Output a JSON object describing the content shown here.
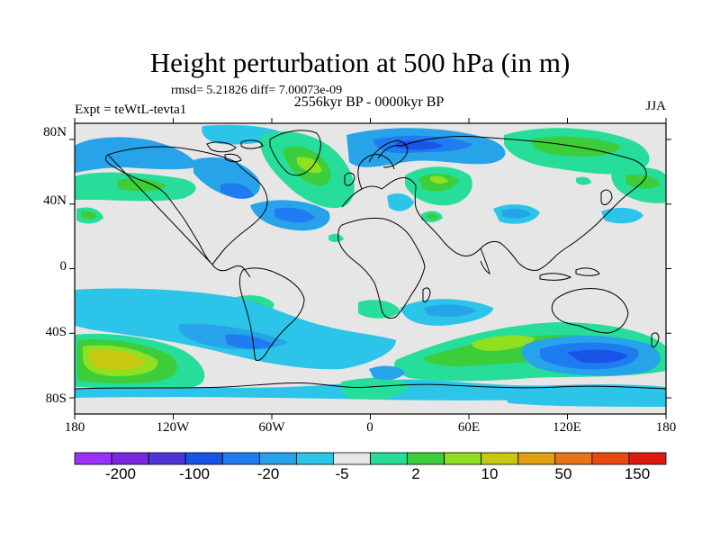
{
  "title": "Height perturbation at 500 hPa (in m)",
  "stats": "rmsd= 5.21826 diff= 7.00073e-09",
  "period": "2556kyr BP - 0000kyr BP",
  "experiment": "Expt = teWtL-tevta1",
  "season": "JJA",
  "axes": {
    "y_ticks": [
      "80N",
      "40N",
      "0",
      "40S",
      "80S"
    ],
    "x_ticks": [
      "180",
      "120W",
      "60W",
      "0",
      "60E",
      "120E",
      "180"
    ]
  },
  "colorbar": {
    "colors": [
      "#9b30ff",
      "#7a28e0",
      "#4d35d8",
      "#1a54e6",
      "#1f7cf0",
      "#27a3ea",
      "#2cc4e8",
      "#e6e6e6",
      "#27dd9a",
      "#3dcc3a",
      "#8ee020",
      "#c8c810",
      "#e0a010",
      "#e87418",
      "#ea4a10",
      "#e01a10"
    ],
    "labels": [
      "-200",
      "-100",
      "-20",
      "-5",
      "2",
      "10",
      "50",
      "150"
    ]
  }
}
